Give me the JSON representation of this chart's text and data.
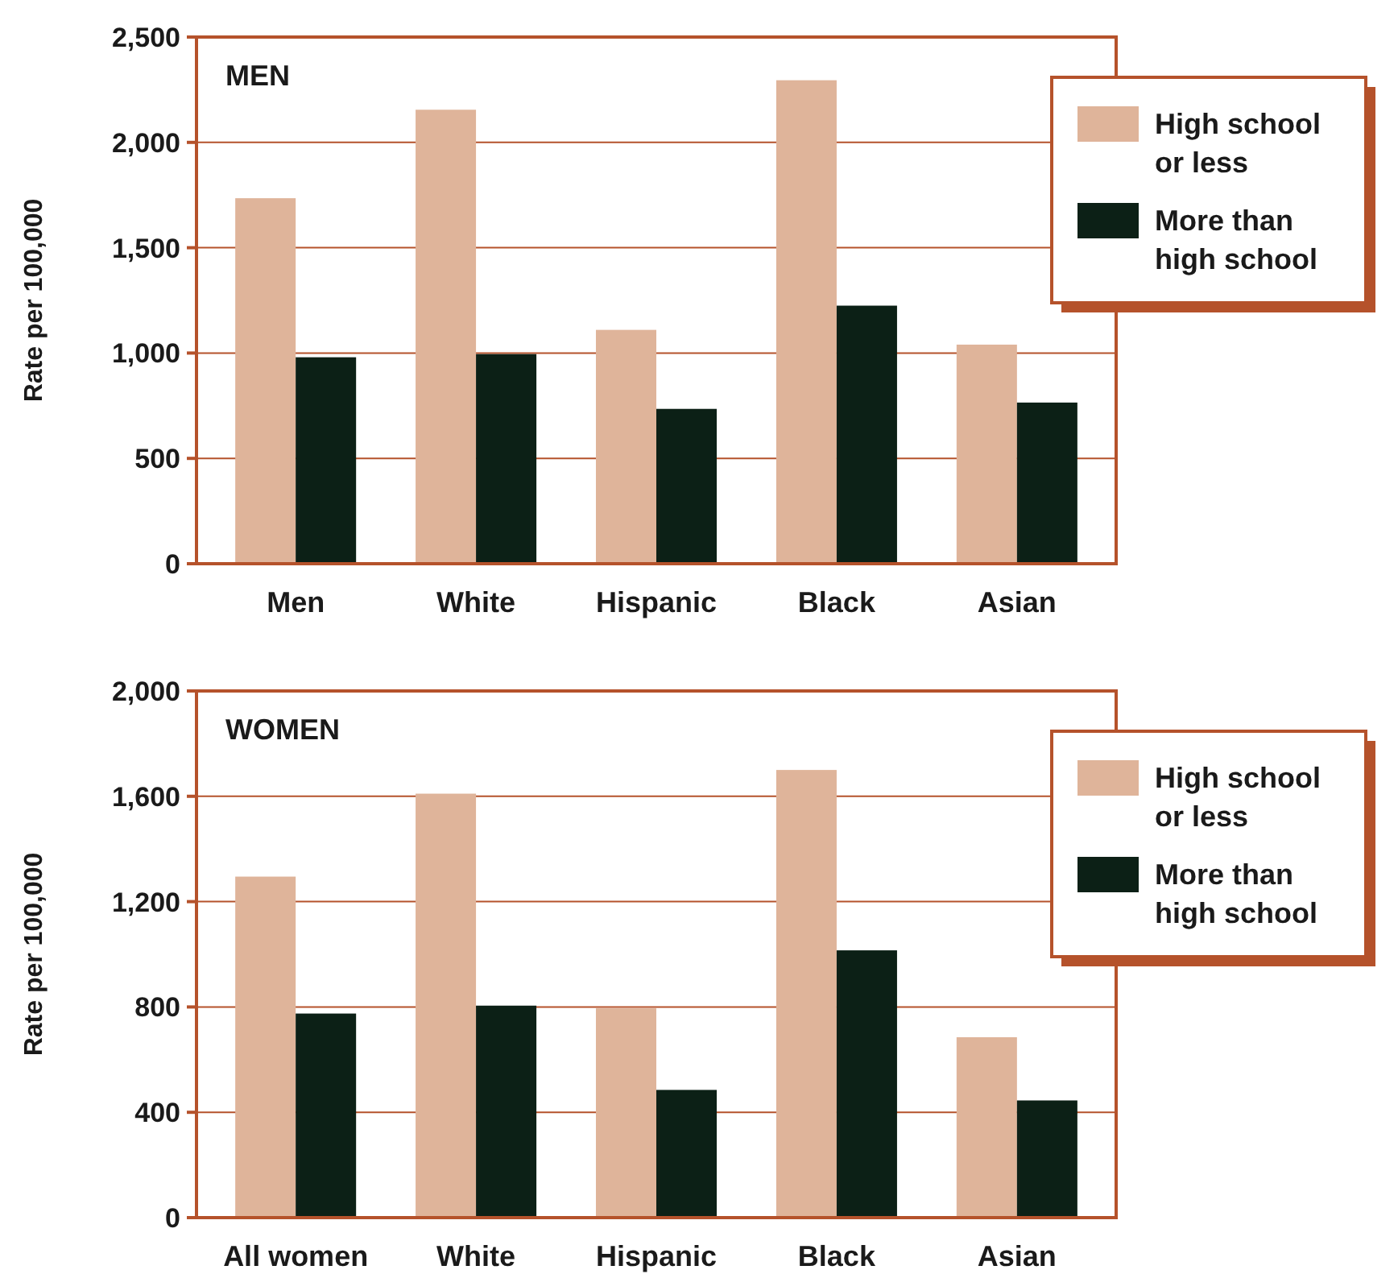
{
  "chart_data": [
    {
      "type": "bar",
      "title": "MEN",
      "ylabel": "Rate per 100,000",
      "categories": [
        "Men",
        "White",
        "Hispanic",
        "Black",
        "Asian"
      ],
      "series": [
        {
          "name": "High school or less",
          "color": "#dfb49a",
          "values": [
            1735,
            2155,
            1110,
            2295,
            1040
          ]
        },
        {
          "name": "More than high school",
          "color": "#0c2016",
          "values": [
            980,
            995,
            735,
            1225,
            765
          ]
        }
      ],
      "ylim": [
        0,
        2500
      ],
      "yticks": [
        0,
        {
          "value": 500,
          "label": "500"
        },
        {
          "value": 1000,
          "label": "1,000"
        },
        {
          "value": 1500,
          "label": "1,500"
        },
        {
          "value": 2000,
          "label": "2,000"
        },
        {
          "value": 2500,
          "label": "2,500"
        }
      ],
      "grid": "y",
      "legend": "top right"
    },
    {
      "type": "bar",
      "title": "WOMEN",
      "ylabel": "Rate per 100,000",
      "categories": [
        "All women",
        "White",
        "Hispanic",
        "Black",
        "Asian"
      ],
      "series": [
        {
          "name": "High school or less",
          "color": "#dfb49a",
          "values": [
            1295,
            1610,
            795,
            1700,
            685
          ]
        },
        {
          "name": "More than high school",
          "color": "#0c2016",
          "values": [
            775,
            805,
            485,
            1015,
            445
          ]
        }
      ],
      "ylim": [
        0,
        2000
      ],
      "yticks": [
        0,
        400,
        800,
        {
          "value": 1200,
          "label": "1,200"
        },
        {
          "value": 1600,
          "label": "1,600"
        },
        {
          "value": 2000,
          "label": "2,000"
        }
      ],
      "grid": "y",
      "legend": "top right"
    }
  ]
}
